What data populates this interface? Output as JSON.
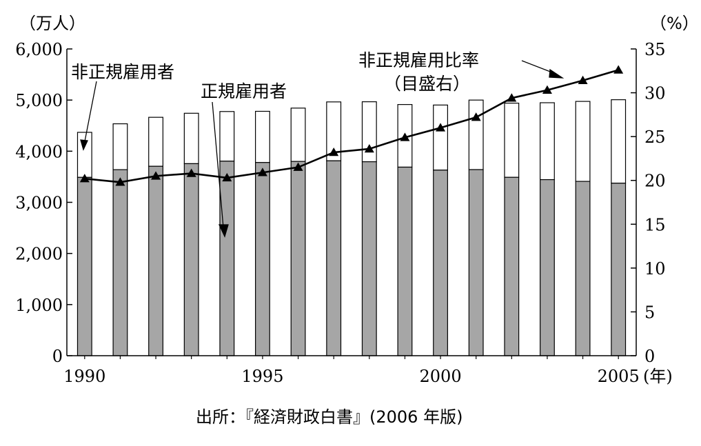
{
  "chart_data": {
    "type": "bar",
    "left_unit": "（万人）",
    "right_unit": "（%）",
    "x_unit": "(年)",
    "x_tick_labels": [
      "1990",
      "1995",
      "2000",
      "2005"
    ],
    "left_ticks": [
      "0",
      "1,000",
      "2,000",
      "3,000",
      "4,000",
      "5,000",
      "6,000"
    ],
    "right_ticks": [
      "0",
      "5",
      "10",
      "15",
      "20",
      "25",
      "30",
      "35"
    ],
    "left_ylim": [
      0,
      6000
    ],
    "right_ylim": [
      0,
      35
    ],
    "x": [
      1990,
      1991,
      1992,
      1993,
      1994,
      1995,
      1996,
      1997,
      1998,
      1999,
      2000,
      2001,
      2002,
      2003,
      2004,
      2005
    ],
    "series": [
      {
        "name": "正規雇用者",
        "type": "bar",
        "axis": "left",
        "color": "#a6a6a6",
        "values": [
          3488,
          3639,
          3705,
          3756,
          3805,
          3779,
          3800,
          3812,
          3794,
          3688,
          3630,
          3640,
          3489,
          3444,
          3410,
          3374
        ]
      },
      {
        "name": "非正規雇用者",
        "type": "bar-stacked",
        "axis": "left",
        "color": "#ffffff",
        "values": [
          881,
          897,
          958,
          986,
          971,
          1001,
          1043,
          1152,
          1173,
          1225,
          1273,
          1360,
          1451,
          1504,
          1564,
          1633
        ]
      },
      {
        "name": "非正規雇用比率",
        "type": "line",
        "axis": "right",
        "color": "#000000",
        "values": [
          20.2,
          19.8,
          20.5,
          20.8,
          20.3,
          20.9,
          21.5,
          23.2,
          23.6,
          24.9,
          26.0,
          27.2,
          29.4,
          30.3,
          31.4,
          32.6
        ]
      }
    ],
    "annotations": [
      {
        "text": "非正規雇用者"
      },
      {
        "text": "正規雇用者"
      },
      {
        "text": "非正規雇用比率"
      },
      {
        "text": "（目盛右）"
      }
    ],
    "source": "出所：『経済財政白書』(2006 年版)"
  }
}
